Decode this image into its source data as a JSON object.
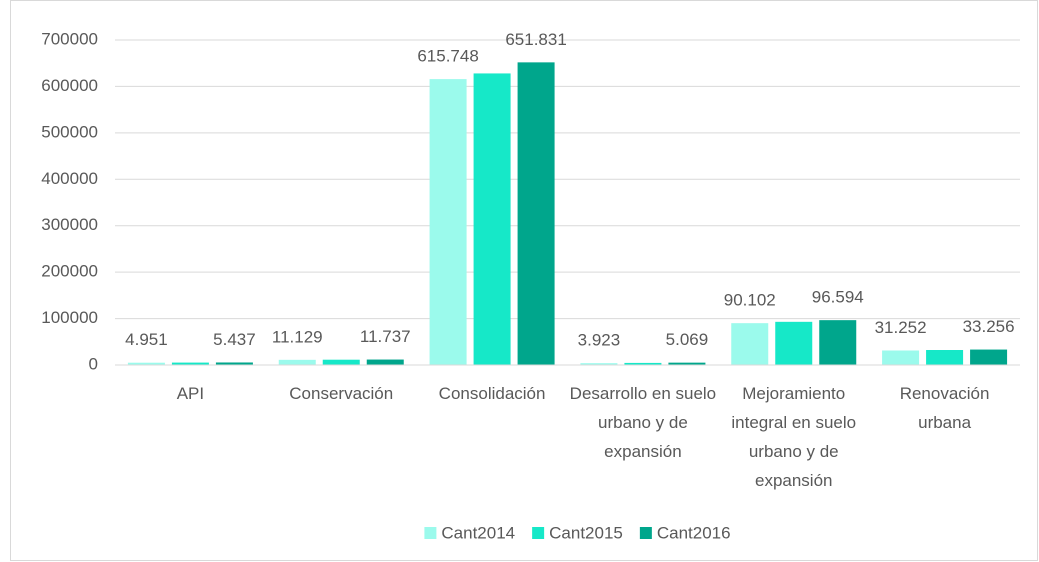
{
  "chart_data": {
    "type": "bar",
    "categories": [
      "API",
      "Conservación",
      "Consolidación",
      "Desarrollo en suelo urbano y de expansión",
      "Mejoramiento integral en suelo urbano y de expansión",
      "Renovación urbana"
    ],
    "series": [
      {
        "name": "Cant2014",
        "color": "#9bfaec",
        "values": [
          4951,
          11129,
          615748,
          3923,
          90102,
          31252
        ],
        "value_labels": [
          "4.951",
          "11.129",
          "615.748",
          "3.923",
          "90.102",
          "31.252"
        ]
      },
      {
        "name": "Cant2015",
        "color": "#16e8c8",
        "values": [
          5200,
          11400,
          628000,
          4500,
          93000,
          32300
        ]
      },
      {
        "name": "Cant2016",
        "color": "#00a68c",
        "values": [
          5437,
          11737,
          651831,
          5069,
          96594,
          33256
        ],
        "value_labels": [
          "5.437",
          "11.737",
          "651.831",
          "5.069",
          "96.594",
          "33.256"
        ]
      }
    ],
    "ylim": [
      0,
      700000
    ],
    "yticks": [
      0,
      100000,
      200000,
      300000,
      400000,
      500000,
      600000,
      700000
    ],
    "grid": true,
    "legend": "bottom"
  }
}
